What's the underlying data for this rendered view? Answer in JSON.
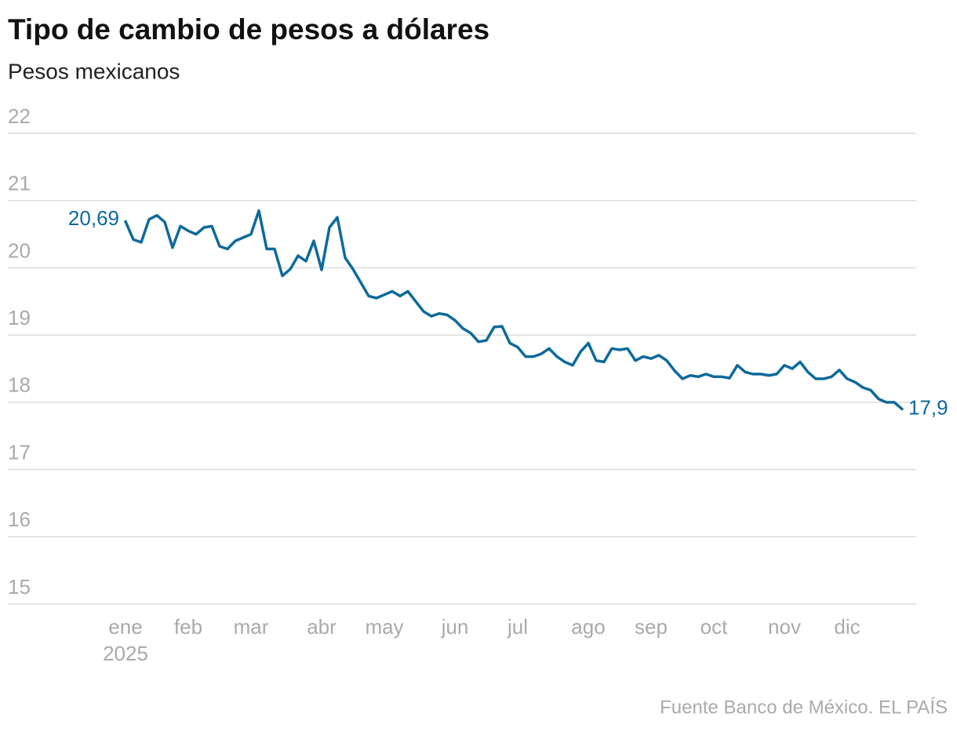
{
  "chart_data": {
    "type": "line",
    "title": "Tipo de cambio de pesos a dólares",
    "subtitle": "Pesos mexicanos",
    "source": "Fuente Banco de México. EL PAÍS",
    "year_label": "2025",
    "color": "#0e6a9b",
    "grid": true,
    "ylim": [
      15,
      22
    ],
    "yticks": [
      15,
      16,
      17,
      18,
      19,
      20,
      21,
      22
    ],
    "categories": [
      "ene",
      null,
      null,
      null,
      null,
      null,
      null,
      null,
      "feb",
      null,
      null,
      null,
      null,
      null,
      null,
      null,
      "mar",
      null,
      null,
      null,
      null,
      null,
      null,
      null,
      null,
      "abr",
      null,
      null,
      null,
      null,
      null,
      null,
      null,
      "may",
      null,
      null,
      null,
      null,
      null,
      null,
      null,
      null,
      "jun",
      null,
      null,
      null,
      null,
      null,
      null,
      null,
      "jul",
      null,
      null,
      null,
      null,
      null,
      null,
      null,
      null,
      "ago",
      null,
      null,
      null,
      null,
      null,
      null,
      null,
      "sep",
      null,
      null,
      null,
      null,
      null,
      null,
      null,
      "oct",
      null,
      null,
      null,
      null,
      null,
      null,
      null,
      null,
      "nov",
      null,
      null,
      null,
      null,
      null,
      null,
      null,
      "dic",
      null,
      null,
      null,
      null,
      null,
      null,
      null
    ],
    "values": [
      20.69,
      20.42,
      20.38,
      20.72,
      20.78,
      20.68,
      20.3,
      20.62,
      20.55,
      20.5,
      20.6,
      20.62,
      20.32,
      20.28,
      20.4,
      20.45,
      20.5,
      20.85,
      20.28,
      20.28,
      19.88,
      19.98,
      20.18,
      20.1,
      20.4,
      19.97,
      20.6,
      20.75,
      20.15,
      19.98,
      19.78,
      19.58,
      19.55,
      19.6,
      19.65,
      19.58,
      19.65,
      19.5,
      19.35,
      19.28,
      19.32,
      19.3,
      19.22,
      19.1,
      19.03,
      18.9,
      18.92,
      19.12,
      19.13,
      18.88,
      18.82,
      18.68,
      18.68,
      18.72,
      18.8,
      18.68,
      18.6,
      18.55,
      18.75,
      18.88,
      18.62,
      18.6,
      18.8,
      18.78,
      18.8,
      18.62,
      18.68,
      18.65,
      18.7,
      18.62,
      18.47,
      18.35,
      18.4,
      18.38,
      18.42,
      18.38,
      18.38,
      18.36,
      18.55,
      18.45,
      18.42,
      18.42,
      18.4,
      18.42,
      18.55,
      18.5,
      18.6,
      18.45,
      18.35,
      18.35,
      18.38,
      18.48,
      18.35,
      18.3,
      18.22,
      18.18,
      18.05,
      18.0,
      18.0,
      17.9
    ],
    "value_labels": [
      "20,69",
      null,
      null,
      null,
      null,
      null,
      null,
      null,
      null,
      null,
      null,
      null,
      null,
      null,
      null,
      null,
      null,
      null,
      null,
      null,
      null,
      null,
      null,
      null,
      null,
      null,
      null,
      null,
      null,
      null,
      null,
      null,
      null,
      null,
      null,
      null,
      null,
      null,
      null,
      null,
      null,
      null,
      null,
      null,
      null,
      null,
      null,
      null,
      null,
      null,
      null,
      null,
      null,
      null,
      null,
      null,
      null,
      null,
      null,
      null,
      null,
      null,
      null,
      null,
      null,
      null,
      null,
      null,
      null,
      null,
      null,
      null,
      null,
      null,
      null,
      null,
      null,
      null,
      null,
      null,
      null,
      null,
      null,
      null,
      null,
      null,
      null,
      null,
      null,
      null,
      null,
      null,
      null,
      null,
      null,
      null,
      null,
      null,
      null,
      "17,9"
    ]
  }
}
